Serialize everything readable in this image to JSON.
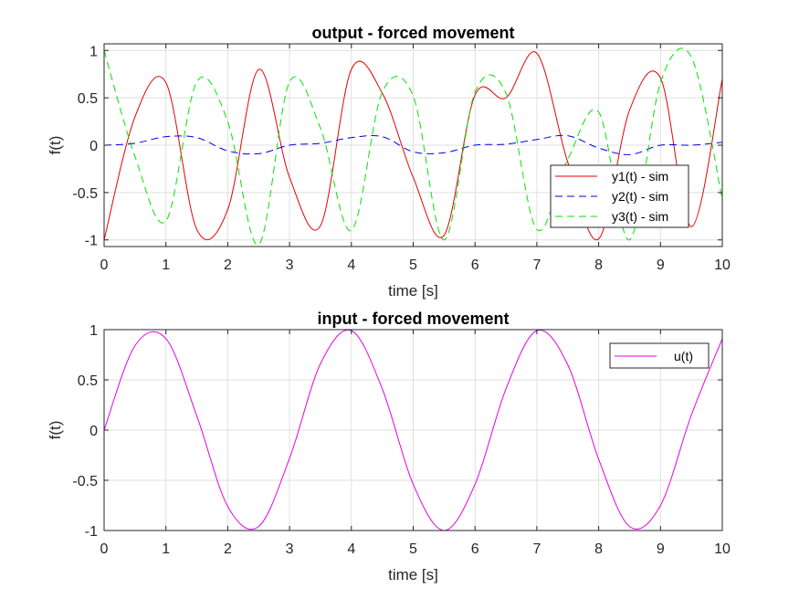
{
  "chart_data": [
    {
      "type": "line",
      "title": "output - forced movement",
      "xlabel": "time [s]",
      "ylabel": "f(t)",
      "xlim": [
        0,
        10
      ],
      "ylim": [
        -1.07,
        1.07
      ],
      "xticks": [
        "0",
        "1",
        "2",
        "3",
        "4",
        "5",
        "6",
        "7",
        "8",
        "9",
        "10"
      ],
      "yticks": [
        "-1",
        "-0.5",
        "0",
        "0.5",
        "1"
      ],
      "grid": true,
      "legend_position": "lower-right",
      "x": [
        0,
        0.5,
        1,
        1.5,
        2,
        2.5,
        3,
        3.5,
        4,
        4.5,
        5,
        5.5,
        6,
        6.5,
        7,
        7.5,
        8,
        8.5,
        9,
        9.5,
        10
      ],
      "series": [
        {
          "name": "y1(t) - sim",
          "color": "#e60000",
          "dash": "solid",
          "values": [
            -1.0,
            0.3,
            0.66,
            -0.89,
            -0.68,
            0.8,
            -0.34,
            -0.85,
            0.8,
            0.55,
            -0.34,
            -0.95,
            0.53,
            0.5,
            0.97,
            -0.18,
            -0.99,
            0.37,
            0.71,
            -0.86,
            0.7
          ]
        },
        {
          "name": "y2(t) - sim",
          "color": "#0000e6",
          "dash": "dashed",
          "values": [
            0.0,
            0.02,
            0.09,
            0.08,
            -0.06,
            -0.09,
            0.0,
            0.02,
            0.08,
            0.09,
            -0.07,
            -0.08,
            0.0,
            0.01,
            0.06,
            0.1,
            -0.03,
            -0.1,
            0.0,
            0.0,
            0.03
          ]
        },
        {
          "name": "y3(t) - sim",
          "color": "#00e600",
          "dash": "dashed",
          "values": [
            1.0,
            -0.12,
            -0.8,
            0.67,
            0.25,
            -1.05,
            0.67,
            0.18,
            -0.9,
            0.56,
            0.52,
            -1.0,
            0.56,
            0.55,
            -0.89,
            -0.15,
            0.35,
            -1.0,
            0.66,
            0.93,
            -0.57
          ]
        }
      ]
    },
    {
      "type": "line",
      "title": "input - forced movement",
      "xlabel": "time [s]",
      "ylabel": "f(t)",
      "xlim": [
        0,
        10
      ],
      "ylim": [
        -1,
        1
      ],
      "xticks": [
        "0",
        "1",
        "2",
        "3",
        "4",
        "5",
        "6",
        "7",
        "8",
        "9",
        "10"
      ],
      "yticks": [
        "-1",
        "-0.5",
        "0",
        "0.5",
        "1"
      ],
      "grid": true,
      "legend_position": "top-right",
      "x": [
        0,
        0.5,
        1,
        1.5,
        2,
        2.5,
        3,
        3.5,
        4,
        4.5,
        5,
        5.5,
        6,
        6.5,
        7,
        7.5,
        8,
        8.5,
        9,
        9.5,
        10
      ],
      "series": [
        {
          "name": "u(t)",
          "color": "#e600e6",
          "dash": "solid",
          "values": [
            0.0,
            0.84,
            0.91,
            0.14,
            -0.76,
            -0.96,
            -0.28,
            0.66,
            0.99,
            0.41,
            -0.54,
            -1.0,
            -0.54,
            0.41,
            0.99,
            0.65,
            -0.29,
            -0.96,
            -0.75,
            0.15,
            0.91
          ]
        }
      ]
    }
  ]
}
